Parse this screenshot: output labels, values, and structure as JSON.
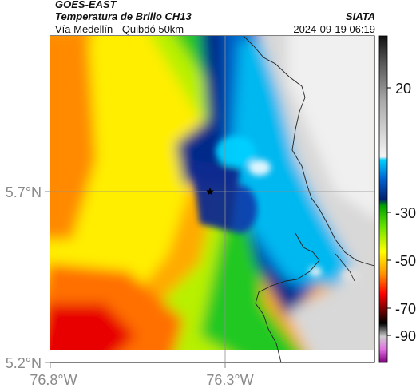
{
  "header": {
    "satellite": "GOES-EAST",
    "product": "Temperatura de Brillo CH13",
    "region": "Vía Medellín - Quibdó 50km",
    "organization": "SIATA",
    "timestamp": "2024-09-19 06:19"
  },
  "map": {
    "lat_ticks": [
      "5.7°N",
      "5.2°N"
    ],
    "lon_ticks": [
      "76.8°W",
      "76.3°W"
    ],
    "marker": "star-marker"
  },
  "colorbar": {
    "ticks": [
      "20",
      "-30",
      "-50",
      "-70",
      "-90"
    ],
    "stops": [
      "#1a1a1a",
      "#777777",
      "#cccccc",
      "#ffffff",
      "#00c8ff",
      "#0050c8",
      "#001e64",
      "#00b400",
      "#64dc00",
      "#ffff00",
      "#ff9600",
      "#ff0000",
      "#7a0000",
      "#000000",
      "#bbbbbb",
      "#e060e0",
      "#800080"
    ]
  }
}
